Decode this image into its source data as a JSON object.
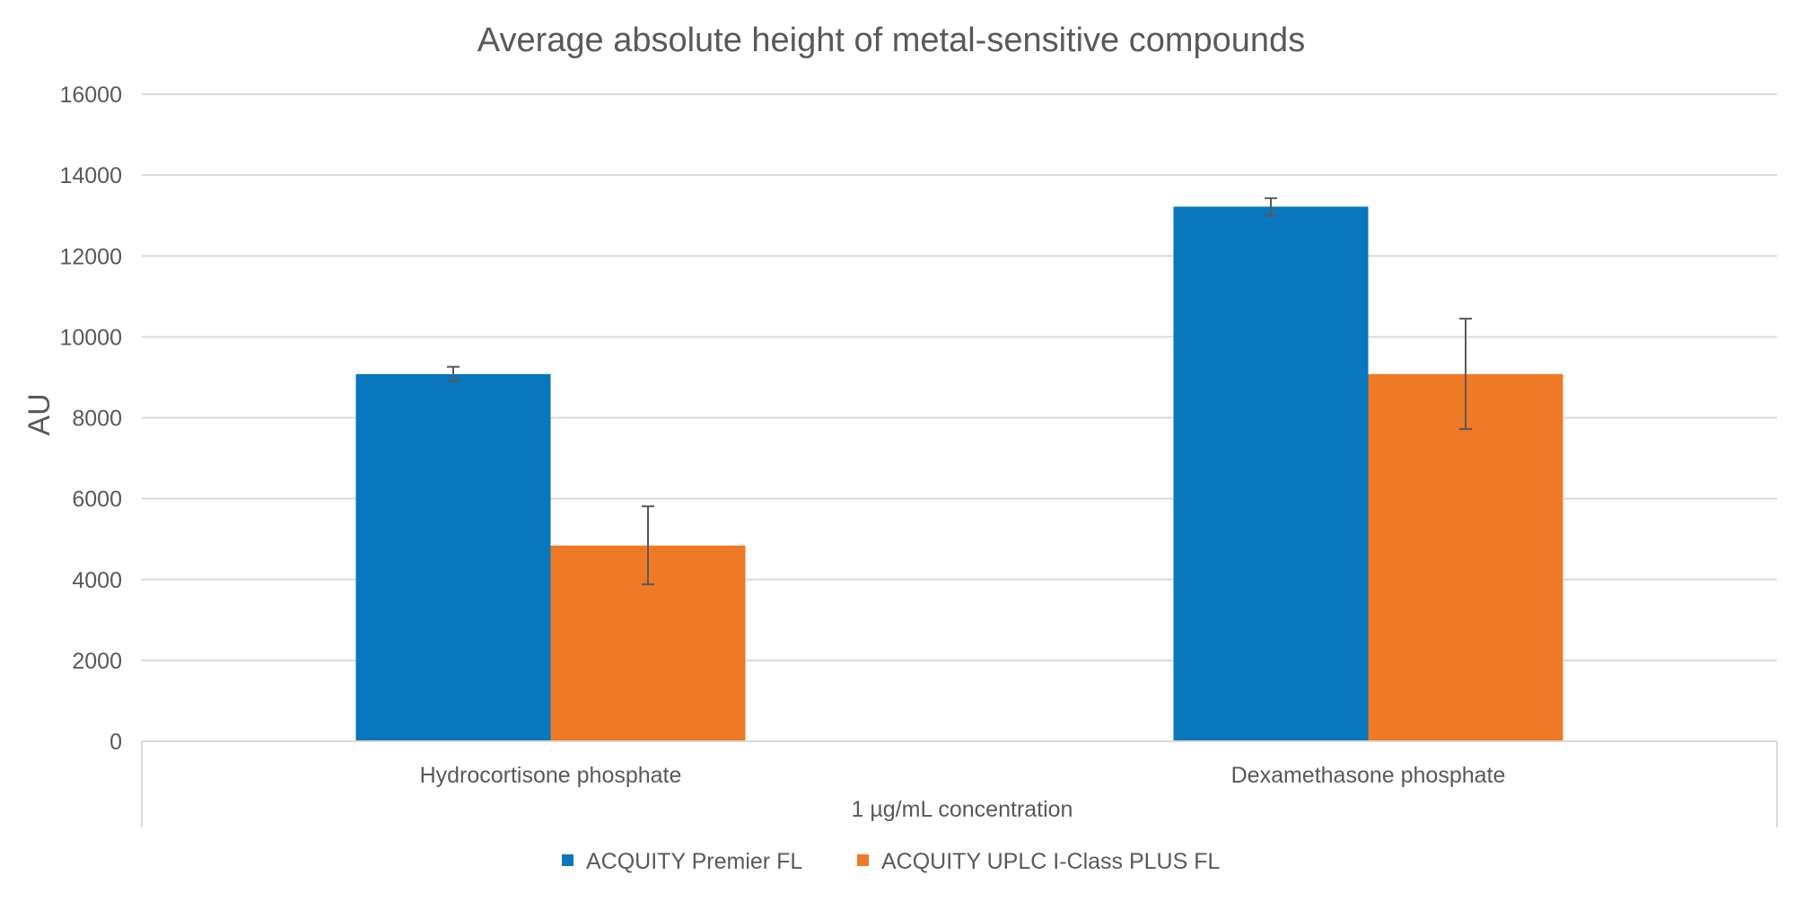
{
  "chart_data": {
    "type": "bar",
    "title": "Average absolute height of metal-sensitive compounds",
    "ylabel": "AU",
    "xlabel": "1 µg/mL concentration",
    "categories": [
      "Hydrocortisone phosphate",
      "Dexamethasone phosphate"
    ],
    "series": [
      {
        "name": "ACQUITY Premier FL",
        "color": "#0877BD",
        "values": [
          9080,
          13220
        ],
        "error_low": [
          8920,
          13000
        ],
        "error_high": [
          9260,
          13430
        ]
      },
      {
        "name": "ACQUITY UPLC I-Class PLUS FL",
        "color": "#EE7A25",
        "values": [
          4840,
          9080
        ],
        "error_low": [
          3880,
          7720
        ],
        "error_high": [
          5810,
          10450
        ]
      }
    ],
    "ylim": [
      0,
      16000
    ],
    "yticks": [
      "0",
      "2000",
      "4000",
      "6000",
      "8000",
      "10000",
      "12000",
      "14000",
      "16000"
    ],
    "grid": true,
    "legend_position": "bottom"
  }
}
